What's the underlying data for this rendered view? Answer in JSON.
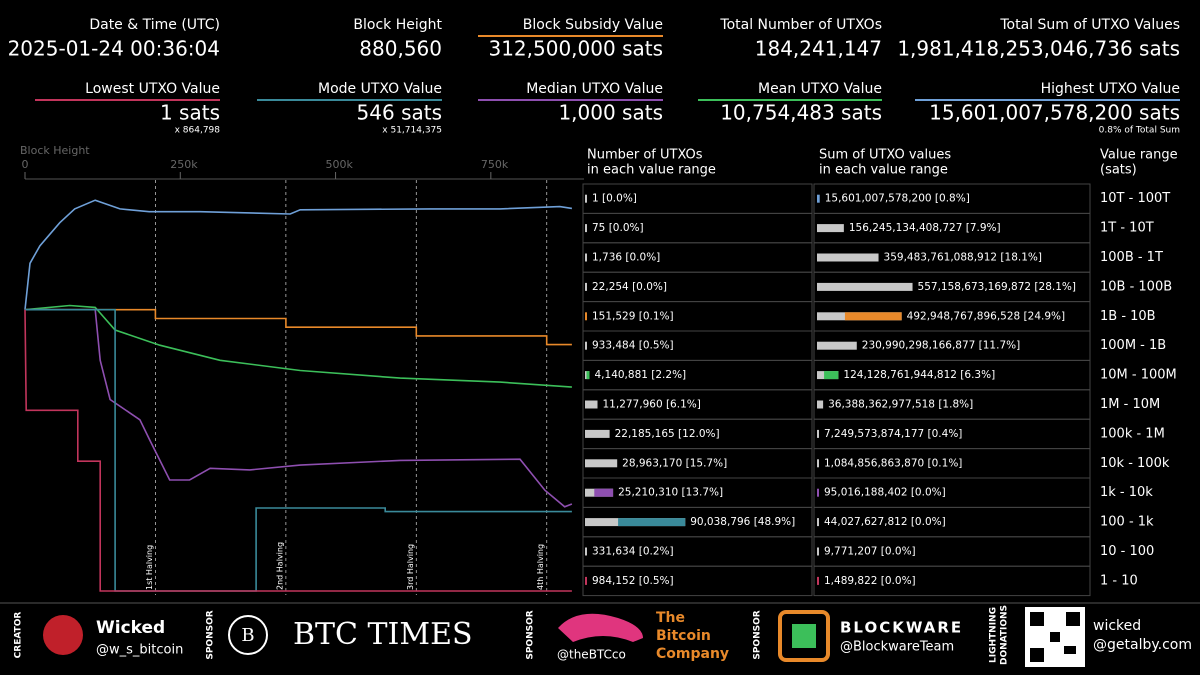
{
  "stats": [
    {
      "label": "Date & Time (UTC)",
      "value": "2025-01-24 00:36:04"
    },
    {
      "label": "Block Height",
      "value": "880,560"
    },
    {
      "label": "Block Subsidy Value",
      "value": "312,500,000 sats",
      "color": "#e8892a"
    },
    {
      "label": "Total Number of UTXOs",
      "value": "184,241,147"
    },
    {
      "label": "Total Sum of UTXO Values",
      "value": "1,981,418,253,046,736 sats"
    },
    {
      "label": "Lowest UTXO Value",
      "value": "1 sats",
      "sub": "x 864,798",
      "color": "#c2355c"
    },
    {
      "label": "Mode UTXO Value",
      "value": "546 sats",
      "sub": "x 51,714,375",
      "color": "#3a8a9a"
    },
    {
      "label": "Median UTXO Value",
      "value": "1,000 sats",
      "color": "#8e4fb0"
    },
    {
      "label": "Mean UTXO Value",
      "value": "10,754,483 sats",
      "color": "#3cbf5a"
    },
    {
      "label": "Highest UTXO Value",
      "value": "15,601,007,578,200 sats",
      "sub": "0.8% of Total Sum",
      "color": "#6fa0d8"
    }
  ],
  "chart_data": {
    "type": "line",
    "xlabel": "Block Height",
    "xlim": [
      0,
      900000
    ],
    "xticks": [
      0,
      {
        "value": 250000,
        "label": "250k"
      },
      {
        "value": 500000,
        "label": "500k"
      },
      {
        "value": 750000,
        "label": "750k"
      }
    ],
    "ylim": [
      1,
      100000000000000
    ],
    "ylog": true,
    "annotations": [
      {
        "x": 210000,
        "label": "1st Halving"
      },
      {
        "x": 420000,
        "label": "2nd Halving"
      },
      {
        "x": 630000,
        "label": "3rd Halving"
      },
      {
        "x": 840000,
        "label": "4th Halving"
      }
    ],
    "series": [
      {
        "color": "#6fa0d8",
        "x": [
          0,
          8000,
          24000,
          40000,
          56000,
          80000,
          113000,
          153000,
          200000,
          282000,
          427000,
          443000,
          652000,
          765000,
          861000,
          880560
        ],
        "values": [
          5000000000,
          200000000000,
          800000000000,
          2000000000000,
          5000000000000,
          15000000000000,
          30000000000000,
          15000000000000,
          12000000000000,
          12000000000000,
          10000000000000,
          14000000000000,
          15000000000000,
          15000000000000,
          18000000000000,
          15601007578200
        ]
      },
      {
        "color": "#e8892a",
        "x": [
          0,
          210000,
          210000,
          420000,
          420000,
          630000,
          630000,
          840000,
          840000,
          880560
        ],
        "values": [
          5000000000,
          5000000000,
          2500000000,
          2500000000,
          1250000000,
          1250000000,
          625000000,
          625000000,
          312500000,
          312500000
        ]
      },
      {
        "color": "#3cbf5a",
        "x": [
          0,
          72000,
          113000,
          145000,
          217000,
          314000,
          443000,
          604000,
          765000,
          880560
        ],
        "values": [
          5000000000,
          7000000000,
          6000000000,
          1000000000,
          300000000,
          90000000,
          40000000,
          22000000,
          16000000,
          10754483
        ]
      },
      {
        "color": "#8e4fb0",
        "x": [
          0,
          113000,
          121000,
          137000,
          185000,
          201000,
          233000,
          265000,
          298000,
          362000,
          443000,
          604000,
          797000,
          837000,
          869000,
          880560
        ],
        "values": [
          5000000000,
          5000000000,
          90000000,
          4000000,
          800000,
          160000,
          6700,
          6700,
          17000,
          15000,
          22000,
          32000,
          35000,
          3000,
          800,
          1000
        ]
      },
      {
        "color": "#3a8a9a",
        "x": [
          0,
          145000,
          145000,
          372000,
          372000,
          580000,
          580000,
          880560
        ],
        "values": [
          5000000000,
          5000000000,
          1,
          1,
          730,
          730,
          546,
          546
        ]
      },
      {
        "color": "#c2355c",
        "x": [
          0,
          2000,
          85000,
          85000,
          121000,
          121000,
          880560
        ],
        "values": [
          5000000000,
          1700000,
          1700000,
          30000,
          30000,
          1,
          1
        ]
      }
    ]
  },
  "table": {
    "headers": [
      [
        "Number of UTXOs",
        "in each value range"
      ],
      [
        "Sum of UTXO values",
        "in each value range"
      ],
      [
        "Value range",
        "(sats)"
      ]
    ],
    "rows": [
      {
        "count_label": "1 [0.0%]",
        "count_pct": 0.0,
        "sum_label": "15,601,007,578,200 [0.8%]",
        "sum_pct": 0.8,
        "range": "10T - 100T",
        "sum_color": "#6fa0d8"
      },
      {
        "count_label": "75 [0.0%]",
        "count_pct": 0.0,
        "sum_label": "156,245,134,408,727 [7.9%]",
        "sum_pct": 7.9,
        "range": "1T - 10T"
      },
      {
        "count_label": "1,736 [0.0%]",
        "count_pct": 0.0,
        "sum_label": "359,483,761,088,912 [18.1%]",
        "sum_pct": 18.1,
        "range": "100B - 1T"
      },
      {
        "count_label": "22,254 [0.0%]",
        "count_pct": 0.0,
        "sum_label": "557,158,673,169,872 [28.1%]",
        "sum_pct": 28.1,
        "range": "10B - 100B"
      },
      {
        "count_label": "151,529 [0.1%]",
        "count_pct": 0.1,
        "sum_label": "492,948,767,896,528 [24.9%]",
        "sum_pct": 24.9,
        "range": "1B - 10B",
        "count_color": "#e8892a",
        "sum_color": "#e8892a"
      },
      {
        "count_label": "933,484 [0.5%]",
        "count_pct": 0.5,
        "sum_label": "230,990,298,166,877 [11.7%]",
        "sum_pct": 11.7,
        "range": "100M - 1B"
      },
      {
        "count_label": "4,140,881 [2.2%]",
        "count_pct": 2.2,
        "sum_label": "124,128,761,944,812 [6.3%]",
        "sum_pct": 6.3,
        "range": "10M - 100M",
        "count_color": "#3cbf5a",
        "sum_color": "#3cbf5a"
      },
      {
        "count_label": "11,277,960 [6.1%]",
        "count_pct": 6.1,
        "sum_label": "36,388,362,977,518 [1.8%]",
        "sum_pct": 1.8,
        "range": "1M - 10M"
      },
      {
        "count_label": "22,185,165 [12.0%]",
        "count_pct": 12.0,
        "sum_label": "7,249,573,874,177 [0.4%]",
        "sum_pct": 0.4,
        "range": "100k - 1M"
      },
      {
        "count_label": "28,963,170 [15.7%]",
        "count_pct": 15.7,
        "sum_label": "1,084,856,863,870 [0.1%]",
        "sum_pct": 0.1,
        "range": "10k - 100k"
      },
      {
        "count_label": "25,210,310 [13.7%]",
        "count_pct": 13.7,
        "sum_label": "95,016,188,402 [0.0%]",
        "sum_pct": 0.0,
        "range": "1k - 10k",
        "count_color": "#8e4fb0",
        "sum_color": "#8e4fb0"
      },
      {
        "count_label": "90,038,796 [48.9%]",
        "count_pct": 48.9,
        "sum_label": "44,027,627,812 [0.0%]",
        "sum_pct": 0.0,
        "range": "100 - 1k",
        "count_color": "#3a8a9a"
      },
      {
        "count_label": "331,634 [0.2%]",
        "count_pct": 0.2,
        "sum_label": "9,771,207 [0.0%]",
        "sum_pct": 0.0,
        "range": "10 - 100"
      },
      {
        "count_label": "984,152 [0.5%]",
        "count_pct": 0.5,
        "sum_label": "1,489,822 [0.0%]",
        "sum_pct": 0.0,
        "range": "1 - 10",
        "count_color": "#c2355c",
        "sum_color": "#c2355c"
      }
    ]
  },
  "footer": {
    "creator_tag": "CREATOR",
    "creator_name": "Wicked",
    "creator_handle": "@w_s_bitcoin",
    "sponsor_tag": "SPONSOR",
    "sponsor1": "BTC TIMES",
    "sponsor2_handle": "@theBTCco",
    "sponsor2_name": [
      "The",
      "Bitcoin",
      "Company"
    ],
    "sponsor3": "BLOCKWARE",
    "sponsor3_handle": "@BlockwareTeam",
    "donation_tag": [
      "LIGHTNING",
      "DONATIONS"
    ],
    "donation_address": [
      "wicked",
      "@getalby.com"
    ]
  }
}
